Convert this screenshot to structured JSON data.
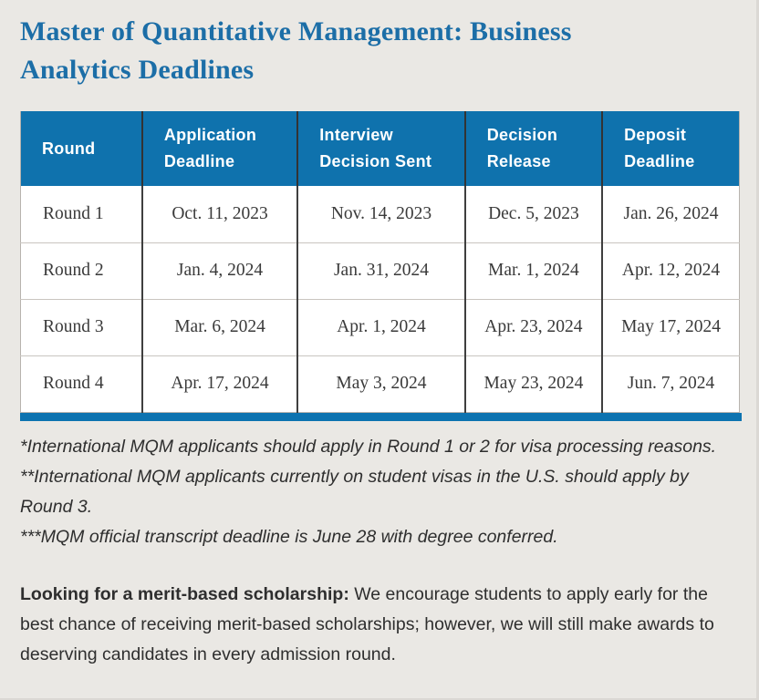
{
  "page": {
    "title": "Master of Quantitative Management: Business Analytics Deadlines"
  },
  "table": {
    "columns": [
      "Round",
      "Application Deadline",
      "Interview Decision Sent",
      "Decision Release",
      "Deposit Deadline"
    ],
    "rows": [
      [
        "Round 1",
        "Oct. 11, 2023",
        "Nov. 14, 2023",
        "Dec. 5, 2023",
        "Jan. 26, 2024"
      ],
      [
        "Round 2",
        "Jan. 4, 2024",
        "Jan. 31, 2024",
        "Mar. 1, 2024",
        "Apr. 12, 2024"
      ],
      [
        "Round 3",
        "Mar. 6, 2024",
        "Apr. 1, 2024",
        "Apr. 23, 2024",
        "May 17, 2024"
      ],
      [
        "Round 4",
        "Apr. 17, 2024",
        "May 3, 2024",
        "May 23, 2024",
        "Jun. 7, 2024"
      ]
    ]
  },
  "footnotes": [
    "*International MQM applicants should apply in Round 1 or 2 for visa processing reasons.",
    "**International MQM applicants currently on student visas in the U.S. should apply by Round 3.",
    "***MQM official transcript deadline is June 28 with degree conferred."
  ],
  "scholarship_note": {
    "lead": "Looking for a merit-based scholarship:",
    "text": " We encourage students to apply early for the best chance of receiving merit-based scholarships; however, we will still make awards to deserving candidates in every admission round."
  },
  "colors": {
    "page_background": "#eae8e4",
    "title_blue": "#1c6ea7",
    "header_blue": "#0f72ad",
    "accent_bar_blue": "#0d73b0"
  }
}
